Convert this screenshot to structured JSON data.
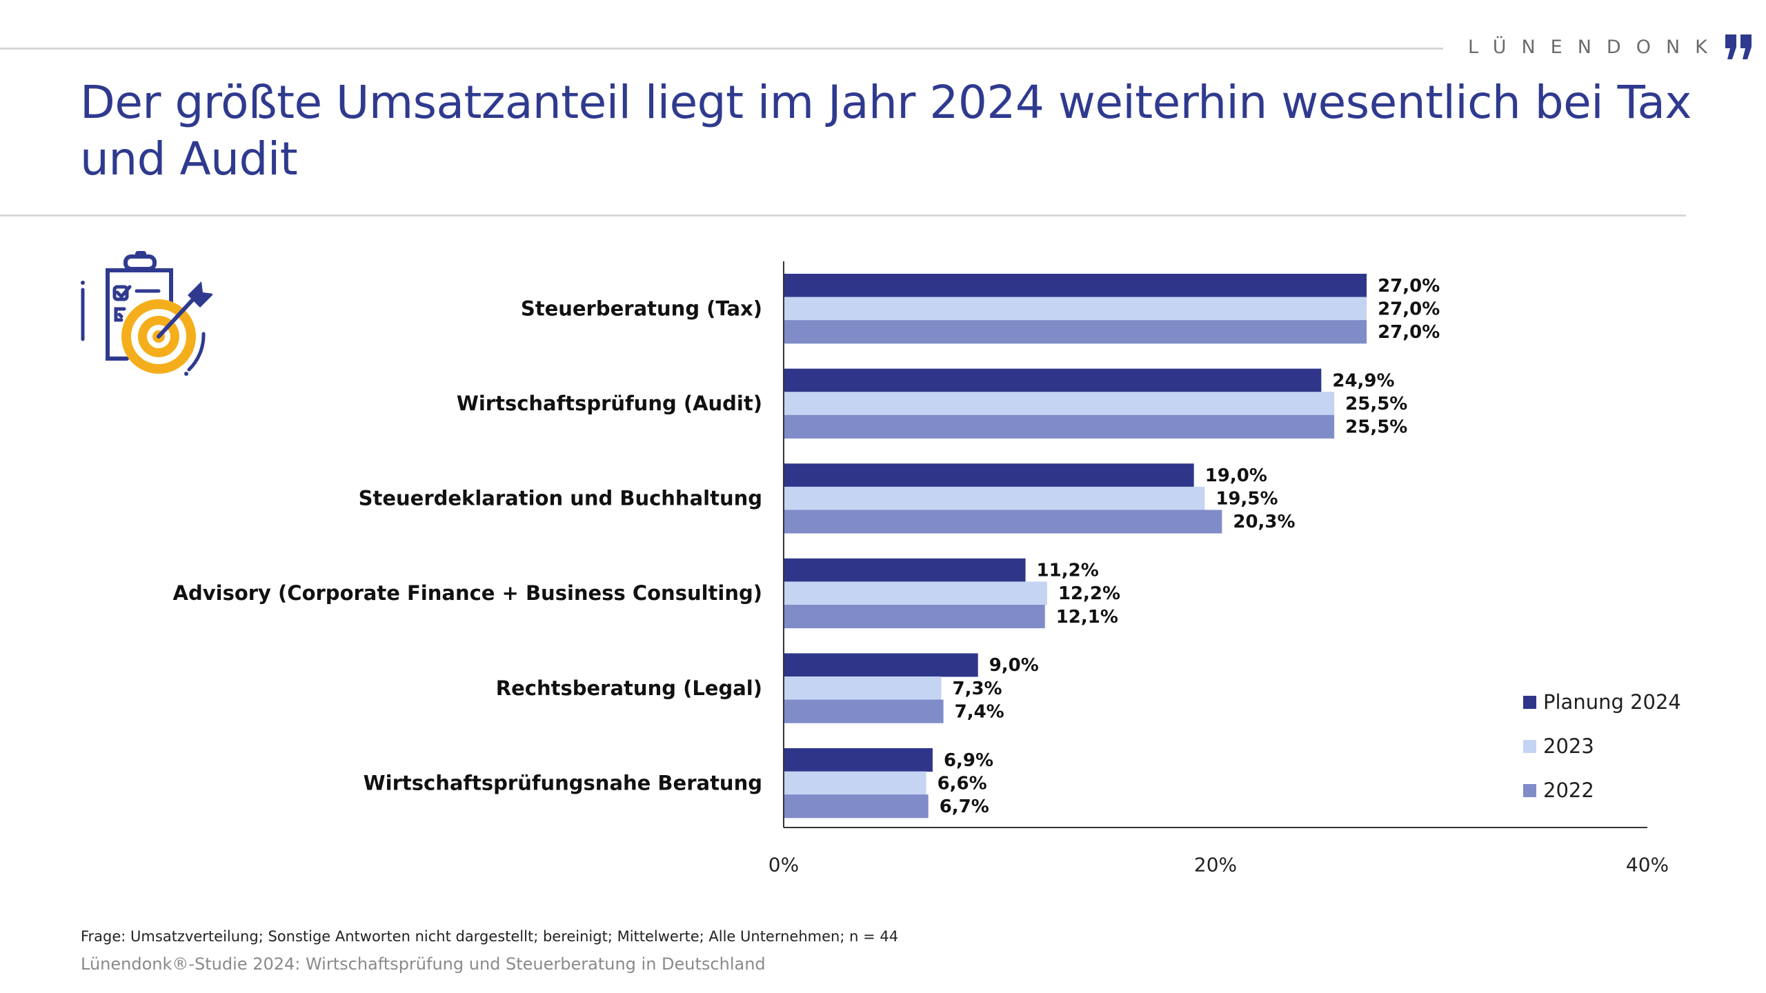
{
  "header": {
    "brand": "LÜNENDONK",
    "brand_color": "#2f3a8f",
    "title": "Der größte Umsatzanteil liegt im Jahr 2024 weiterhin wesentlich bei Tax und Audit",
    "icon": "clipboard-target-icon"
  },
  "footer": {
    "question": "Frage: Umsatzverteilung; Sonstige Antworten nicht dargestellt; bereinigt; Mittelwerte; Alle Unternehmen; n = 44",
    "source": "Lünendonk®-Studie 2024: Wirtschaftsprüfung und Steuerberatung in Deutschland"
  },
  "chart_data": {
    "type": "bar",
    "orientation": "horizontal",
    "title": "Der größte Umsatzanteil liegt im Jahr 2024 weiterhin wesentlich bei Tax und Audit",
    "xlabel": "",
    "ylabel": "",
    "categories": [
      "Steuerberatung (Tax)",
      "Wirtschaftsprüfung (Audit)",
      "Steuerdeklaration und Buchhaltung",
      "Advisory (Corporate Finance + Business Consulting)",
      "Rechtsberatung (Legal)",
      "Wirtschaftsprüfungsnahe Beratung"
    ],
    "series": [
      {
        "name": "Planung 2024",
        "color": "#2f368a",
        "values": [
          27.0,
          24.9,
          19.0,
          11.2,
          9.0,
          6.9
        ],
        "labels": [
          "27,0%",
          "24,9%",
          "19,0%",
          "11,2%",
          "9,0%",
          "6,9%"
        ]
      },
      {
        "name": "2023",
        "color": "#c4d4f2",
        "values": [
          27.0,
          25.5,
          19.5,
          12.2,
          7.3,
          6.6
        ],
        "labels": [
          "27,0%",
          "25,5%",
          "19,5%",
          "12,2%",
          "7,3%",
          "6,6%"
        ]
      },
      {
        "name": "2022",
        "color": "#7f8cc8",
        "values": [
          27.0,
          25.5,
          20.3,
          12.1,
          7.4,
          6.7
        ],
        "labels": [
          "27,0%",
          "25,5%",
          "20,3%",
          "12,1%",
          "7,4%",
          "6,7%"
        ]
      }
    ],
    "xlim": [
      0,
      40
    ],
    "xticks": [
      0,
      20,
      40
    ],
    "xtick_labels": [
      "0%",
      "20%",
      "40%"
    ],
    "grid": false,
    "legend_position": "bottom-right"
  }
}
